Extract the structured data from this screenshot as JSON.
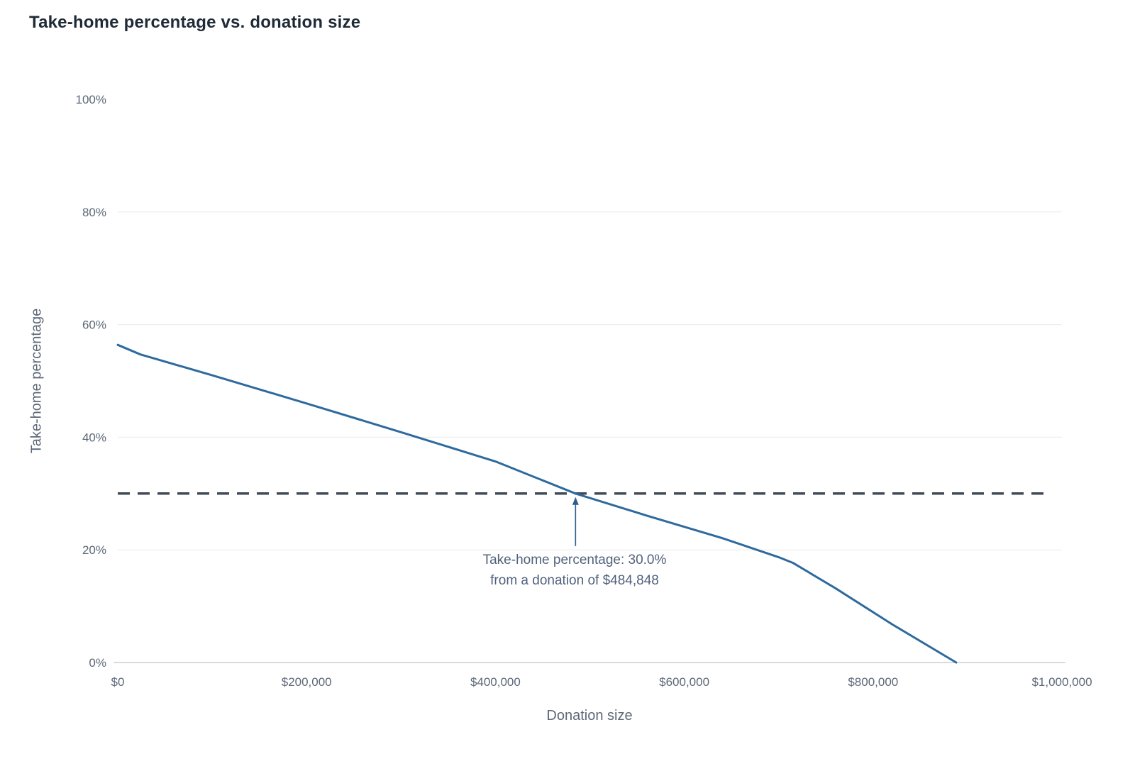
{
  "chart_data": {
    "type": "line",
    "title": "Take-home percentage vs. donation size",
    "xlabel": "Donation size",
    "ylabel": "Take-home percentage",
    "xlim": [
      0,
      1000000
    ],
    "ylim": [
      0,
      100
    ],
    "grid": "horizontal-only",
    "legend": "none",
    "x_ticks": [
      {
        "value": 0,
        "label": "$0"
      },
      {
        "value": 200000,
        "label": "$200,000"
      },
      {
        "value": 400000,
        "label": "$400,000"
      },
      {
        "value": 600000,
        "label": "$600,000"
      },
      {
        "value": 800000,
        "label": "$800,000"
      },
      {
        "value": 1000000,
        "label": "$1,000,000"
      }
    ],
    "y_ticks": [
      {
        "value": 0,
        "label": "0%"
      },
      {
        "value": 20,
        "label": "20%"
      },
      {
        "value": 40,
        "label": "40%"
      },
      {
        "value": 60,
        "label": "60%"
      },
      {
        "value": 80,
        "label": "80%"
      },
      {
        "value": 100,
        "label": "100%"
      }
    ],
    "grid_y": [
      20,
      40,
      60,
      80
    ],
    "series": [
      {
        "name": "Take-home percentage",
        "color": "#2e6a9e",
        "points": [
          [
            0,
            56.4
          ],
          [
            24000,
            54.7
          ],
          [
            100000,
            51.0
          ],
          [
            200000,
            46.0
          ],
          [
            300000,
            40.9
          ],
          [
            400000,
            35.7
          ],
          [
            484848,
            30.0
          ],
          [
            560000,
            26.1
          ],
          [
            640000,
            22.1
          ],
          [
            700000,
            18.7
          ],
          [
            715000,
            17.7
          ],
          [
            760000,
            13.2
          ],
          [
            820000,
            6.8
          ],
          [
            888000,
            0.0
          ]
        ]
      }
    ],
    "reference_line": {
      "y": 30,
      "style": "dashed",
      "color": "#414b57"
    },
    "annotation": {
      "line1": "Take-home percentage: 30.0%",
      "line2": "from a donation of $484,848",
      "x": 484848,
      "y": 30,
      "arrow_color": "#2c5f8a"
    }
  },
  "colors": {
    "background": "#ffffff",
    "title_text": "#1e2a36",
    "axis_text": "#5d6878",
    "gridline": "#e9ebee",
    "axis_line": "#ccd1d7",
    "series_line": "#2e6a9e",
    "reference_dash": "#414b57",
    "annotation_text": "#51627c"
  }
}
